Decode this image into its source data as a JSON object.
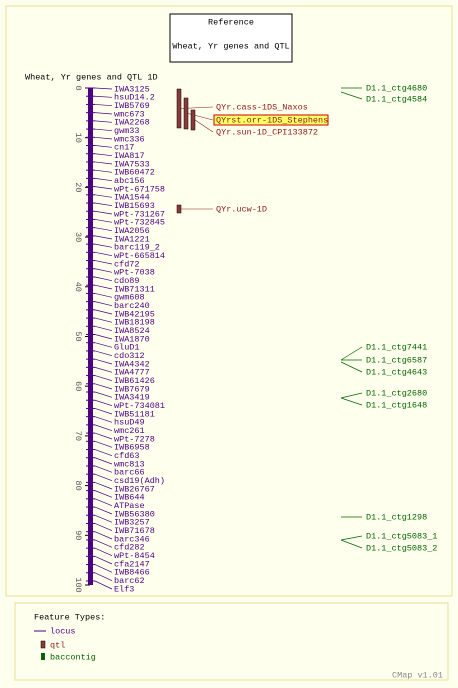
{
  "reference": {
    "title": "Reference",
    "name": "Wheat, Yr genes and QTL"
  },
  "map": {
    "title": "Wheat, Yr genes and QTL 1D",
    "axis": {
      "range": [
        0,
        100
      ],
      "ticks": [
        0,
        10,
        20,
        30,
        40,
        50,
        60,
        70,
        80,
        90,
        100
      ]
    },
    "loci": [
      "IWA3125",
      "hsuD14.2",
      "IWB5769",
      "wmc673",
      "IWA2268",
      "gwm33",
      "wmc336",
      "cn17",
      "IWA817",
      "IWA7533",
      "IWB60472",
      "abc156",
      "wPt-671758",
      "IWA1544",
      "IWB15693",
      "wPt-731267",
      "wPt-732845",
      "IWA2056",
      "IWA1221",
      "barc119_2",
      "wPt-665814",
      "cfd72",
      "wPt-7038",
      "cdo89",
      "IWB71311",
      "gwm608",
      "barc240",
      "IWB42195",
      "IWB18198",
      "IWA8524",
      "IWA1870",
      "GluD1",
      "cdo312",
      "IWA4342",
      "IWA4777",
      "IWB61426",
      "IWB7679",
      "IWA3419",
      "wPt-734081",
      "IWB51181",
      "hsuD49",
      "wmc261",
      "wPt-7278",
      "IWB6958",
      "cfd63",
      "wmc813",
      "barc66",
      "csd19(Adh)",
      "IWB26767",
      "IWB644",
      "ATPase",
      "IWB56380",
      "IWB3257",
      "IWB71678",
      "barc346",
      "cfd282",
      "wPt-8454",
      "cfa2147",
      "IWB8466",
      "barc62",
      "Elf3"
    ],
    "qtl": [
      "QYr.cass-1DS_Naxos",
      "QYrst.orr-1DS_Stephens",
      "QYr.sun-1D_CPI133872",
      "QYr.ucw-1D"
    ],
    "contigs": [
      "D1.1_ctg4680",
      "D1.1_ctg4584",
      "D1.1_ctg7441",
      "D1.1_ctg6587",
      "D1.1_ctg4643",
      "D1.1_ctg2680",
      "D1.1_ctg1648",
      "D1.1_ctg1298",
      "D1.1_ctg5083_1",
      "D1.1_ctg5083_2"
    ]
  },
  "legend": {
    "title": "Feature Types:",
    "items": [
      "locus",
      "qtl",
      "baccontig"
    ]
  },
  "footer": "CMap v1.01"
}
